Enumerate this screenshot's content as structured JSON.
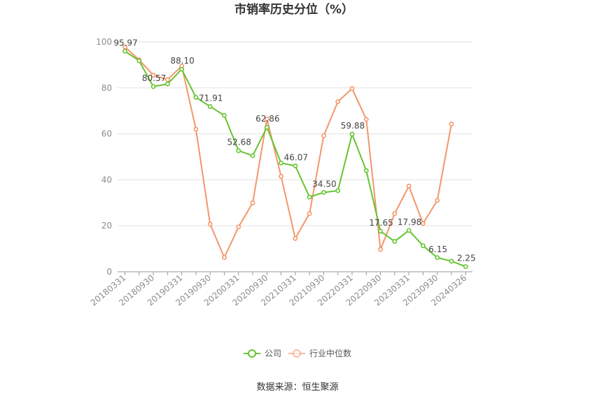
{
  "chart_data": {
    "type": "line",
    "title": "市销率历史分位（%）",
    "source": "数据来源：恒生聚源",
    "ylim": [
      0,
      100
    ],
    "y_ticks": [
      "0",
      "20",
      "40",
      "60",
      "80",
      "100"
    ],
    "x_tick_labels": [
      "20180331",
      "20180930",
      "20190331",
      "20190930",
      "20200331",
      "20200930",
      "20210331",
      "20210930",
      "20220331",
      "20220930",
      "20230331",
      "20230930",
      "20240326"
    ],
    "grid": true,
    "legend_position": "bottom",
    "series": [
      {
        "name": "公司",
        "color": "#66c431",
        "values": [
          95.97,
          91.8,
          80.57,
          81.7,
          88.1,
          75.9,
          71.91,
          68.0,
          52.68,
          50.5,
          62.86,
          47.3,
          46.07,
          32.5,
          34.5,
          35.3,
          59.88,
          44.0,
          17.65,
          13.2,
          17.98,
          11.3,
          6.15,
          4.6,
          2.25
        ],
        "labels": {
          "0": "95.97",
          "2": "80.57",
          "4": "88.10",
          "6": "71.91",
          "8": "52.68",
          "10": "62.86",
          "12": "46.07",
          "14": "34.50",
          "16": "59.88",
          "18": "17.65",
          "20": "17.98",
          "22": "6.15",
          "24": "2.25"
        }
      },
      {
        "name": "行业中位数",
        "color": "#f4966b",
        "values": [
          97.8,
          92.2,
          85.5,
          83.6,
          89.5,
          62.0,
          20.7,
          6.2,
          19.5,
          30.0,
          66.5,
          41.5,
          14.5,
          25.3,
          59.2,
          74.0,
          79.7,
          66.3,
          9.7,
          25.3,
          37.3,
          21.0,
          31.0,
          64.3
        ]
      }
    ]
  }
}
